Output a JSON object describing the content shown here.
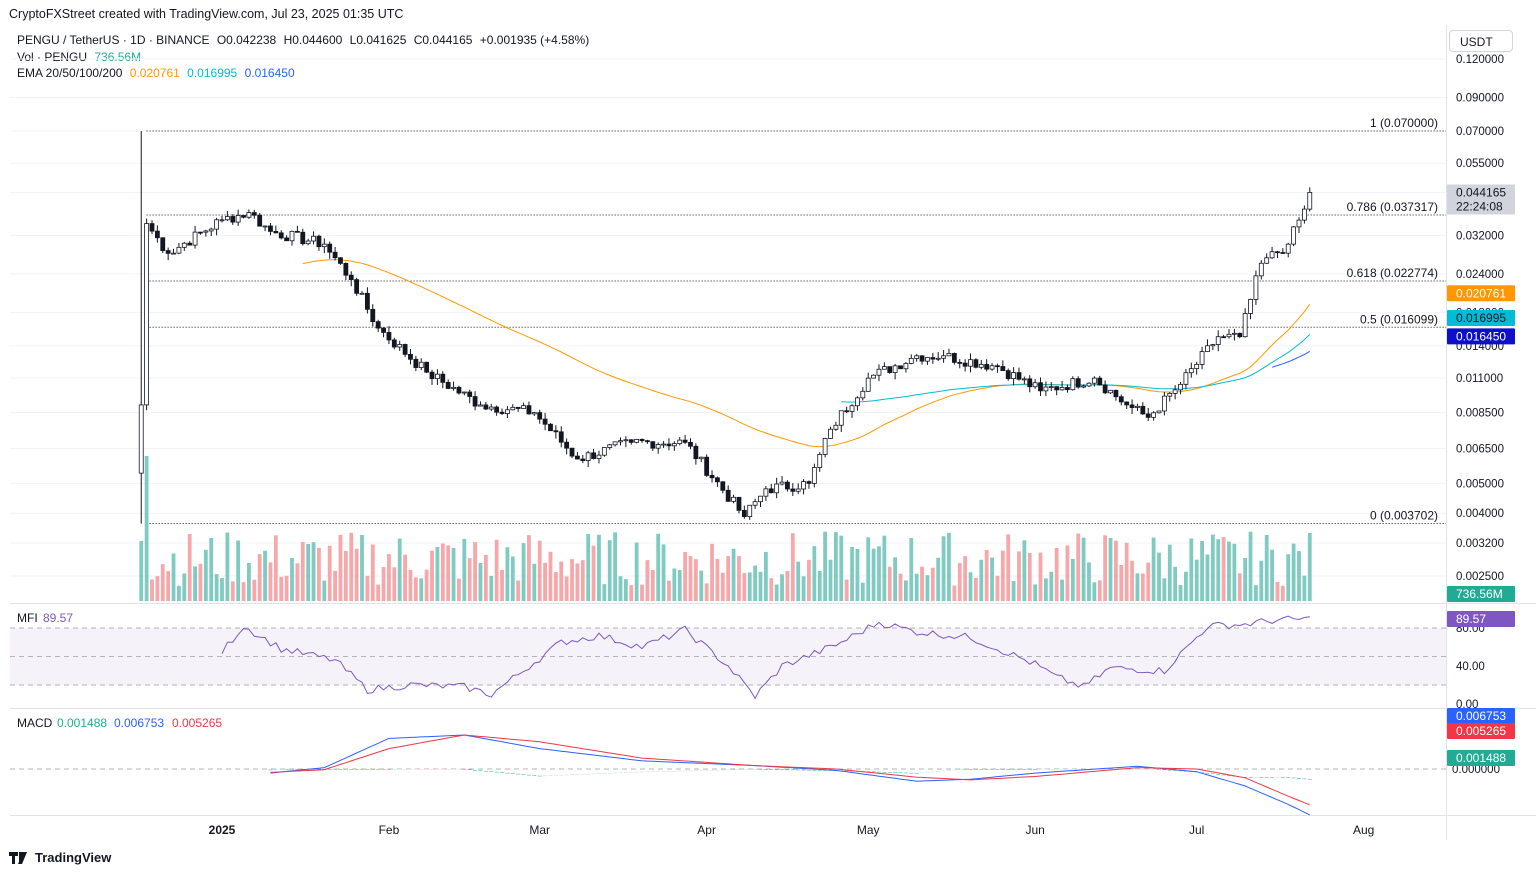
{
  "header": {
    "text": "CryptoFXStreet created with TradingView.com, Jul 23, 2025 01:35 UTC"
  },
  "legend": {
    "symbol": "PENGU / TetherUS · 1D · BINANCE",
    "open": "O0.042238",
    "high": "H0.044600",
    "low": "L0.041625",
    "close": "C0.044165",
    "change": "+0.001935 (+4.58%)",
    "vol_label": "Vol · PENGU",
    "vol_value": "736.56M",
    "ema_label": "EMA 20/50/100/200",
    "ema20": "0.020761",
    "ema50": "0.016995",
    "ema100": "0.016450"
  },
  "currency_button": "USDT",
  "footer": {
    "brand": "TradingView"
  },
  "colors": {
    "up": "#089981",
    "down": "#f23645",
    "vol_up": "#7fcbc1",
    "vol_down": "#f5a7a9",
    "ema20": "#ff9800",
    "ema50": "#00bcd4",
    "ema100": "#2962ff",
    "mfi": "#7e57c2",
    "macd": "#2962ff",
    "signal": "#f23645"
  },
  "chart_data": [
    {
      "type": "candlestick",
      "title": "PENGU / TetherUS · 1D · BINANCE",
      "y_scale": "log",
      "y_ticks": [
        "0.120000",
        "0.090000",
        "0.070000",
        "0.055000",
        "0.044165",
        "0.032000",
        "0.024000",
        "0.018000",
        "0.014000",
        "0.011000",
        "0.008500",
        "0.006500",
        "0.005000",
        "0.004000",
        "0.003200",
        "0.002500"
      ],
      "x_ticks": [
        "2025",
        "Feb",
        "Mar",
        "Apr",
        "May",
        "Jun",
        "Jul",
        "Aug"
      ],
      "ohlc_waypoints": [
        {
          "date": "2024-12-17",
          "close": 0.009
        },
        {
          "date": "2024-12-18",
          "close": 0.035
        },
        {
          "date": "2024-12-22",
          "close": 0.028
        },
        {
          "date": "2025-01-01",
          "close": 0.036
        },
        {
          "date": "2025-01-06",
          "close": 0.038
        },
        {
          "date": "2025-01-10",
          "close": 0.033
        },
        {
          "date": "2025-01-20",
          "close": 0.03
        },
        {
          "date": "2025-01-25",
          "close": 0.023
        },
        {
          "date": "2025-01-30",
          "close": 0.016
        },
        {
          "date": "2025-02-08",
          "close": 0.0115
        },
        {
          "date": "2025-02-18",
          "close": 0.009
        },
        {
          "date": "2025-02-28",
          "close": 0.0085
        },
        {
          "date": "2025-03-08",
          "close": 0.006
        },
        {
          "date": "2025-03-18",
          "close": 0.0068
        },
        {
          "date": "2025-03-28",
          "close": 0.0068
        },
        {
          "date": "2025-04-08",
          "close": 0.0039
        },
        {
          "date": "2025-04-12",
          "close": 0.0048
        },
        {
          "date": "2025-04-20",
          "close": 0.005
        },
        {
          "date": "2025-04-24",
          "close": 0.0075
        },
        {
          "date": "2025-05-01",
          "close": 0.011
        },
        {
          "date": "2025-05-10",
          "close": 0.013
        },
        {
          "date": "2025-05-15",
          "close": 0.013
        },
        {
          "date": "2025-05-25",
          "close": 0.012
        },
        {
          "date": "2025-06-02",
          "close": 0.01
        },
        {
          "date": "2025-06-12",
          "close": 0.011
        },
        {
          "date": "2025-06-18",
          "close": 0.009
        },
        {
          "date": "2025-06-22",
          "close": 0.0082
        },
        {
          "date": "2025-06-28",
          "close": 0.0105
        },
        {
          "date": "2025-07-05",
          "close": 0.015
        },
        {
          "date": "2025-07-09",
          "close": 0.015
        },
        {
          "date": "2025-07-13",
          "close": 0.026
        },
        {
          "date": "2025-07-18",
          "close": 0.03
        },
        {
          "date": "2025-07-21",
          "close": 0.039
        },
        {
          "date": "2025-07-22",
          "close": 0.0442
        }
      ],
      "last_price": "0.044165",
      "countdown": "22:24:08",
      "fib_levels": [
        {
          "label": "1 (0.070000)",
          "value": 0.07
        },
        {
          "label": "0.786 (0.037317)",
          "value": 0.037317
        },
        {
          "label": "0.618 (0.022774)",
          "value": 0.022774
        },
        {
          "label": "0.5 (0.016099)",
          "value": 0.016099
        },
        {
          "label": "0 (0.003702)",
          "value": 0.003702
        }
      ],
      "ema_last": [
        {
          "name": "EMA 20",
          "value": "0.020761"
        },
        {
          "name": "EMA 50",
          "value": "0.016995"
        },
        {
          "name": "EMA 100",
          "value": "0.016450"
        }
      ],
      "volume_last": "736.56M"
    },
    {
      "type": "line",
      "title": "MFI",
      "last_value": "89.57",
      "y_ticks": [
        "80.00",
        "40.00",
        "0.00"
      ],
      "band": [
        20,
        80
      ],
      "waypoints": [
        {
          "date": "2025-01-01",
          "value": 55
        },
        {
          "date": "2025-01-05",
          "value": 82
        },
        {
          "date": "2025-01-12",
          "value": 58
        },
        {
          "date": "2025-01-22",
          "value": 46
        },
        {
          "date": "2025-01-28",
          "value": 15
        },
        {
          "date": "2025-02-05",
          "value": 20
        },
        {
          "date": "2025-02-15",
          "value": 18
        },
        {
          "date": "2025-02-20",
          "value": 10
        },
        {
          "date": "2025-03-05",
          "value": 65
        },
        {
          "date": "2025-03-12",
          "value": 72
        },
        {
          "date": "2025-03-20",
          "value": 60
        },
        {
          "date": "2025-03-28",
          "value": 78
        },
        {
          "date": "2025-04-05",
          "value": 40
        },
        {
          "date": "2025-04-10",
          "value": 8
        },
        {
          "date": "2025-04-15",
          "value": 40
        },
        {
          "date": "2025-04-25",
          "value": 62
        },
        {
          "date": "2025-05-03",
          "value": 86
        },
        {
          "date": "2025-05-10",
          "value": 76
        },
        {
          "date": "2025-05-20",
          "value": 70
        },
        {
          "date": "2025-06-01",
          "value": 42
        },
        {
          "date": "2025-06-05",
          "value": 28
        },
        {
          "date": "2025-06-10",
          "value": 18
        },
        {
          "date": "2025-06-15",
          "value": 38
        },
        {
          "date": "2025-06-25",
          "value": 35
        },
        {
          "date": "2025-07-03",
          "value": 82
        },
        {
          "date": "2025-07-10",
          "value": 84
        },
        {
          "date": "2025-07-15",
          "value": 88
        },
        {
          "date": "2025-07-22",
          "value": 89.57
        }
      ]
    },
    {
      "type": "line",
      "title": "MACD",
      "series_values": {
        "histogram": "0.001488",
        "macd": "0.006753",
        "signal": "0.005265"
      },
      "y_ticks": [
        "0.000000",
        "−0.005000"
      ],
      "waypoints": [
        {
          "date": "2025-01-10",
          "macd": 0.0006,
          "signal": 0.0005
        },
        {
          "date": "2025-01-20",
          "macd": -0.0002,
          "signal": 0.0001
        },
        {
          "date": "2025-02-01",
          "macd": -0.0045,
          "signal": -0.003
        },
        {
          "date": "2025-02-15",
          "macd": -0.005,
          "signal": -0.005
        },
        {
          "date": "2025-03-01",
          "macd": -0.003,
          "signal": -0.004
        },
        {
          "date": "2025-03-20",
          "macd": -0.0012,
          "signal": -0.0016
        },
        {
          "date": "2025-04-10",
          "macd": -0.0005,
          "signal": -0.0005
        },
        {
          "date": "2025-04-25",
          "macd": 0.0002,
          "signal": 0.0
        },
        {
          "date": "2025-05-10",
          "macd": 0.0018,
          "signal": 0.0012
        },
        {
          "date": "2025-05-20",
          "macd": 0.0015,
          "signal": 0.0016
        },
        {
          "date": "2025-06-01",
          "macd": 0.0006,
          "signal": 0.0011
        },
        {
          "date": "2025-06-20",
          "macd": -0.0004,
          "signal": -0.0002
        },
        {
          "date": "2025-07-01",
          "macd": 0.0004,
          "signal": 0.0
        },
        {
          "date": "2025-07-10",
          "macd": 0.0025,
          "signal": 0.0013
        },
        {
          "date": "2025-07-18",
          "macd": 0.0052,
          "signal": 0.004
        },
        {
          "date": "2025-07-22",
          "macd": 0.006753,
          "signal": 0.005265
        }
      ]
    }
  ]
}
